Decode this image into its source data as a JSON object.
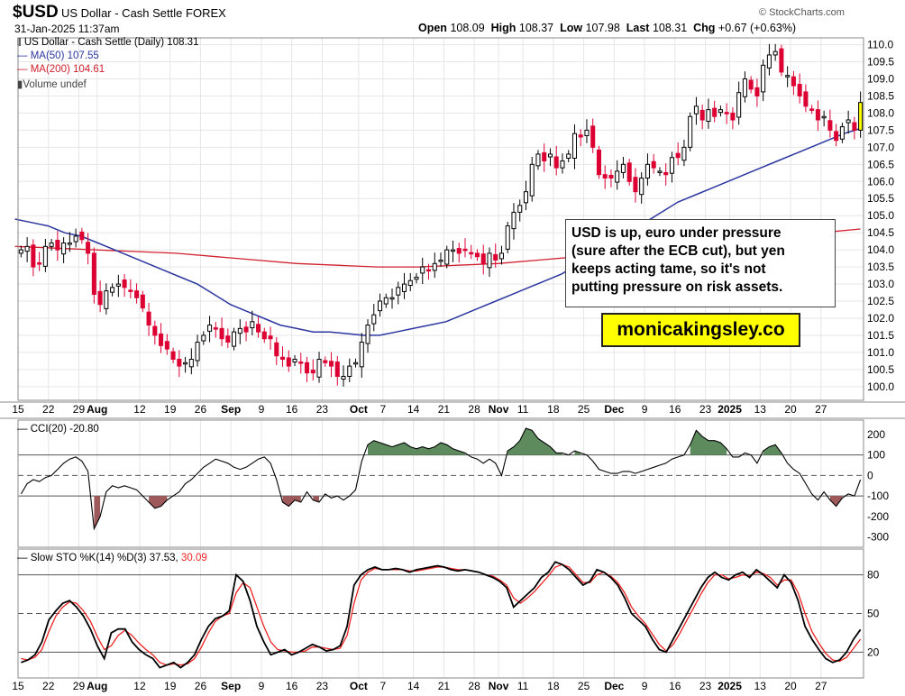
{
  "header": {
    "symbol": "$USD",
    "name": "US Dollar - Cash Settle",
    "exchange": "FOREX",
    "brand": "© StockCharts.com",
    "date": "31-Jan-2025 11:37am",
    "open_label": "Open",
    "open": "108.09",
    "high_label": "High",
    "high": "108.37",
    "low_label": "Low",
    "low": "107.98",
    "last_label": "Last",
    "last": "108.31",
    "chg_label": "Chg",
    "chg": "+0.67 (+0.63%)"
  },
  "legend": {
    "main": "US Dollar - Cash Settle (Daily) 108.31",
    "ma50": "MA(50) 107.55",
    "ma200": "MA(200) 104.61",
    "volume": "Volume undef",
    "cci": "CCI(20) -20.80",
    "sto_prefix": "Slow STO %K(14) %D(3) 37.53,",
    "sto_d": "30.09"
  },
  "annotation": {
    "lines": [
      "USD is up, euro under pressure",
      "(sure after the ECB cut), but yen",
      "keeps acting tame, so it's not",
      "putting pressure on risk assets."
    ],
    "site": "monicakingsley.co"
  },
  "colors": {
    "up": "#000000",
    "down": "#dd0033",
    "ma50": "#2b36a0",
    "ma200": "#d0202e",
    "cci_fill": "#5e8b5e",
    "cci_fill_neg": "#9e5a5a",
    "sto_k": "#000000",
    "sto_d": "#ee2222",
    "grid": "#e6e6e6",
    "level": "#555555",
    "highlight": "#ffff00"
  },
  "chart_data": [
    {
      "type": "candlestick",
      "title": "US Dollar - Cash Settle (Daily) 108.31",
      "ylim": [
        99.6,
        110.2
      ],
      "y_ticks": [
        "100.0",
        "100.5",
        "101.0",
        "101.5",
        "102.0",
        "102.5",
        "103.0",
        "103.5",
        "104.0",
        "104.5",
        "105.0",
        "105.5",
        "106.0",
        "106.5",
        "107.0",
        "107.5",
        "108.0",
        "108.5",
        "109.0",
        "109.5",
        "110.0"
      ],
      "x_labels": [
        {
          "d": 0,
          "t": "15",
          "b": false
        },
        {
          "d": 5,
          "t": "22",
          "b": false
        },
        {
          "d": 10,
          "t": "29",
          "b": false
        },
        {
          "d": 13,
          "t": "Aug",
          "b": true
        },
        {
          "d": 20,
          "t": "12",
          "b": false
        },
        {
          "d": 25,
          "t": "19",
          "b": false
        },
        {
          "d": 30,
          "t": "26",
          "b": false
        },
        {
          "d": 35,
          "t": "Sep",
          "b": true
        },
        {
          "d": 40,
          "t": "9",
          "b": false
        },
        {
          "d": 45,
          "t": "16",
          "b": false
        },
        {
          "d": 50,
          "t": "23",
          "b": false
        },
        {
          "d": 56,
          "t": "Oct",
          "b": true
        },
        {
          "d": 60,
          "t": "7",
          "b": false
        },
        {
          "d": 65,
          "t": "14",
          "b": false
        },
        {
          "d": 70,
          "t": "21",
          "b": false
        },
        {
          "d": 75,
          "t": "28",
          "b": false
        },
        {
          "d": 79,
          "t": "Nov",
          "b": true
        },
        {
          "d": 83,
          "t": "11",
          "b": false
        },
        {
          "d": 88,
          "t": "18",
          "b": false
        },
        {
          "d": 93,
          "t": "25",
          "b": false
        },
        {
          "d": 98,
          "t": "Dec",
          "b": true
        },
        {
          "d": 103,
          "t": "9",
          "b": false
        },
        {
          "d": 108,
          "t": "16",
          "b": false
        },
        {
          "d": 113,
          "t": "23",
          "b": false
        },
        {
          "d": 117,
          "t": "2025",
          "b": true
        },
        {
          "d": 122,
          "t": "13",
          "b": false
        },
        {
          "d": 127,
          "t": "20",
          "b": false
        },
        {
          "d": 132,
          "t": "27",
          "b": false
        }
      ],
      "close": [
        104.0,
        104.1,
        103.5,
        103.6,
        104.1,
        104.2,
        104.0,
        104.2,
        104.2,
        104.4,
        104.3,
        103.9,
        102.7,
        102.4,
        102.8,
        102.9,
        103.0,
        102.9,
        102.8,
        102.6,
        102.3,
        101.8,
        101.5,
        101.2,
        101.1,
        100.8,
        100.6,
        100.7,
        100.8,
        101.3,
        101.5,
        101.8,
        101.7,
        101.4,
        101.3,
        101.6,
        101.7,
        101.6,
        101.9,
        101.6,
        101.4,
        101.4,
        100.9,
        100.8,
        100.6,
        100.8,
        100.7,
        100.4,
        100.4,
        100.8,
        100.7,
        100.6,
        100.3,
        100.3,
        100.6,
        100.7,
        101.3,
        101.8,
        102.1,
        102.5,
        102.6,
        102.6,
        102.9,
        103.0,
        103.1,
        103.2,
        103.5,
        103.4,
        103.6,
        103.7,
        104.0,
        104.0,
        103.9,
        104.0,
        103.9,
        103.8,
        103.6,
        103.9,
        103.7,
        103.9,
        104.7,
        105.1,
        105.3,
        105.7,
        106.5,
        106.8,
        106.6,
        106.8,
        106.4,
        106.6,
        106.8,
        107.4,
        107.3,
        107.5,
        107.0,
        106.2,
        106.1,
        106.1,
        106.3,
        106.5,
        106.0,
        105.7,
        106.1,
        106.5,
        106.4,
        106.3,
        106.2,
        106.7,
        106.7,
        107.0,
        107.9,
        108.2,
        107.8,
        108.1,
        107.9,
        108.1,
        108.0,
        107.8,
        108.6,
        109.0,
        108.7,
        108.5,
        109.4,
        109.7,
        109.8,
        109.2,
        109.1,
        108.8,
        108.5,
        108.2,
        108.1,
        107.8,
        107.9,
        107.5,
        107.2,
        107.6,
        107.8,
        107.5,
        108.31
      ],
      "ma50": [
        104.9,
        104.8,
        104.7,
        104.5,
        104.4,
        104.2,
        104.0,
        103.8,
        103.6,
        103.4,
        103.2,
        103.0,
        102.7,
        102.4,
        102.2,
        102.0,
        101.8,
        101.7,
        101.6,
        101.6,
        101.55,
        101.5,
        101.5,
        101.6,
        101.7,
        101.8,
        101.9,
        102.1,
        102.3,
        102.5,
        102.7,
        102.9,
        103.1,
        103.3,
        103.6,
        103.9,
        104.2,
        104.5,
        104.8,
        105.1,
        105.4,
        105.6,
        105.8,
        106.0,
        106.2,
        106.4,
        106.6,
        106.8,
        107.0,
        107.2,
        107.4,
        107.55
      ],
      "ma200": [
        104.1,
        104.05,
        104.0,
        103.95,
        103.9,
        103.8,
        103.7,
        103.6,
        103.55,
        103.5,
        103.5,
        103.55,
        103.6,
        103.7,
        103.8,
        103.9,
        104.0,
        104.1,
        104.25,
        104.4,
        104.5,
        104.61
      ]
    },
    {
      "type": "line",
      "title": "CCI(20) -20.80",
      "ylim": [
        -350,
        270
      ],
      "levels": [
        100,
        0,
        -100
      ],
      "y_ticks": [
        "200",
        "100",
        "0",
        "-100",
        "-200",
        "-300"
      ],
      "values": [
        -90,
        -40,
        -20,
        -30,
        -10,
        0,
        30,
        60,
        80,
        90,
        70,
        20,
        -260,
        -200,
        -80,
        -50,
        -60,
        -50,
        -60,
        -70,
        -100,
        -130,
        -160,
        -150,
        -120,
        -100,
        -80,
        -40,
        -20,
        10,
        40,
        60,
        80,
        70,
        60,
        40,
        30,
        40,
        60,
        80,
        90,
        60,
        -20,
        -130,
        -150,
        -120,
        -130,
        -80,
        -120,
        -130,
        -90,
        -110,
        -100,
        -120,
        -100,
        -70,
        70,
        150,
        170,
        160,
        150,
        140,
        150,
        160,
        140,
        130,
        140,
        130,
        140,
        160,
        150,
        130,
        120,
        110,
        90,
        80,
        60,
        80,
        60,
        0,
        120,
        140,
        170,
        230,
        220,
        180,
        160,
        140,
        110,
        110,
        100,
        120,
        110,
        100,
        70,
        30,
        20,
        10,
        10,
        20,
        20,
        10,
        20,
        30,
        40,
        50,
        60,
        80,
        90,
        100,
        150,
        220,
        190,
        170,
        170,
        160,
        130,
        90,
        90,
        110,
        100,
        60,
        120,
        140,
        150,
        110,
        60,
        30,
        10,
        -40,
        -90,
        -120,
        -80,
        -120,
        -150,
        -110,
        -90,
        -100,
        -20.8
      ]
    },
    {
      "type": "line",
      "title": "Slow STO %K(14) %D(3)",
      "ylim": [
        0,
        100
      ],
      "levels": [
        80,
        50,
        20
      ],
      "y_ticks": [
        "80",
        "50",
        "20"
      ],
      "k": [
        12,
        14,
        18,
        28,
        45,
        52,
        58,
        60,
        55,
        48,
        38,
        25,
        15,
        35,
        38,
        38,
        28,
        22,
        18,
        15,
        8,
        10,
        12,
        8,
        12,
        18,
        30,
        40,
        46,
        48,
        52,
        80,
        75,
        60,
        40,
        28,
        18,
        20,
        22,
        18,
        20,
        23,
        26,
        24,
        21,
        22,
        25,
        40,
        72,
        80,
        84,
        86,
        84,
        84,
        85,
        84,
        82,
        84,
        85,
        86,
        87,
        86,
        84,
        83,
        84,
        83,
        82,
        80,
        78,
        75,
        70,
        55,
        60,
        65,
        70,
        78,
        82,
        90,
        88,
        84,
        78,
        72,
        75,
        84,
        82,
        78,
        72,
        62,
        50,
        45,
        40,
        30,
        22,
        20,
        30,
        40,
        50,
        60,
        70,
        78,
        82,
        78,
        76,
        80,
        82,
        78,
        84,
        80,
        75,
        70,
        80,
        74,
        60,
        40,
        30,
        22,
        15,
        12,
        14,
        20,
        30,
        37.53
      ],
      "d": [
        15,
        14,
        16,
        22,
        36,
        48,
        55,
        59,
        58,
        52,
        44,
        32,
        22,
        25,
        33,
        37,
        33,
        27,
        22,
        18,
        12,
        10,
        11,
        10,
        11,
        15,
        24,
        35,
        44,
        48,
        50,
        66,
        74,
        70,
        55,
        40,
        28,
        22,
        21,
        20,
        20,
        21,
        24,
        24,
        23,
        22,
        23,
        33,
        58,
        76,
        82,
        85,
        84,
        84,
        84,
        84,
        83,
        83,
        84,
        85,
        86,
        86,
        85,
        84,
        84,
        83,
        82,
        80,
        79,
        76,
        72,
        62,
        58,
        62,
        67,
        73,
        79,
        86,
        88,
        86,
        80,
        74,
        74,
        80,
        82,
        79,
        74,
        66,
        55,
        48,
        42,
        34,
        26,
        21,
        26,
        35,
        45,
        55,
        65,
        74,
        80,
        80,
        77,
        78,
        80,
        79,
        82,
        81,
        78,
        72,
        76,
        76,
        66,
        50,
        36,
        27,
        19,
        14,
        13,
        16,
        23,
        30.09
      ]
    }
  ]
}
